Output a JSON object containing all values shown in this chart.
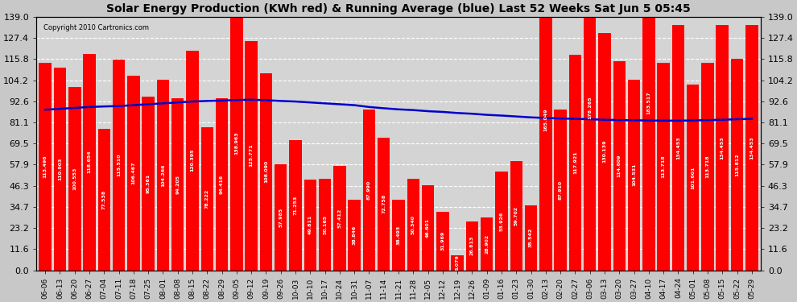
{
  "title": "Solar Energy Production (KWh red) & Running Average (blue) Last 52 Weeks Sat Jun 5 05:45",
  "copyright": "Copyright 2010 Cartronics.com",
  "bar_color": "#ff0000",
  "avg_color": "#0000cc",
  "background_color": "#e8e8e8",
  "plot_bg_color": "#d0d0d0",
  "ylim": [
    0.0,
    139.0
  ],
  "yticks": [
    0.0,
    11.6,
    23.2,
    34.7,
    46.3,
    57.9,
    69.5,
    81.1,
    92.6,
    104.2,
    115.8,
    127.4,
    139.0
  ],
  "categories": [
    "06-06",
    "06-13",
    "06-20",
    "06-27",
    "07-04",
    "07-11",
    "07-18",
    "07-25",
    "08-01",
    "08-08",
    "08-15",
    "08-22",
    "08-29",
    "09-05",
    "09-12",
    "09-19",
    "09-26",
    "10-03",
    "10-10",
    "10-17",
    "10-24",
    "10-31",
    "11-07",
    "11-14",
    "11-21",
    "11-28",
    "12-05",
    "12-12",
    "12-19",
    "12-26",
    "01-09",
    "01-16",
    "01-23",
    "01-30",
    "02-13",
    "02-20",
    "02-27",
    "03-06",
    "03-13",
    "03-20",
    "03-27",
    "04-10",
    "04-17",
    "04-24",
    "05-01",
    "05-08",
    "05-15",
    "05-22",
    "05-29"
  ],
  "values": [
    113.496,
    110.903,
    100.553,
    118.654,
    77.538,
    115.51,
    106.467,
    95.361,
    104.266,
    94.205,
    120.395,
    78.222,
    94.416,
    138.963,
    125.771,
    108.09,
    57.985,
    71.253,
    49.811,
    50.165,
    57.412,
    38.846,
    87.99,
    72.758,
    38.493,
    50.34,
    46.601,
    31.969,
    8.079,
    26.813,
    28.902,
    53.926,
    59.702,
    35.542,
    165.049,
    87.91,
    117.921,
    178.265,
    130.139,
    114.609,
    104.531,
    183.517,
    113.718,
    134.453,
    101.601,
    113.718,
    134.453,
    115.812,
    134.453
  ],
  "running_avg": [
    88.0,
    88.5,
    89.0,
    89.5,
    89.8,
    90.0,
    90.5,
    91.0,
    91.5,
    92.0,
    92.5,
    92.8,
    93.0,
    93.3,
    93.5,
    93.2,
    92.8,
    92.5,
    92.0,
    91.5,
    91.0,
    90.5,
    89.5,
    88.8,
    88.2,
    87.8,
    87.2,
    86.8,
    86.2,
    85.8,
    85.2,
    84.8,
    84.3,
    83.8,
    83.5,
    83.2,
    83.0,
    82.8,
    82.5,
    82.3,
    82.2,
    82.1,
    82.0,
    82.0,
    82.1,
    82.3,
    82.5,
    82.8,
    83.0
  ]
}
